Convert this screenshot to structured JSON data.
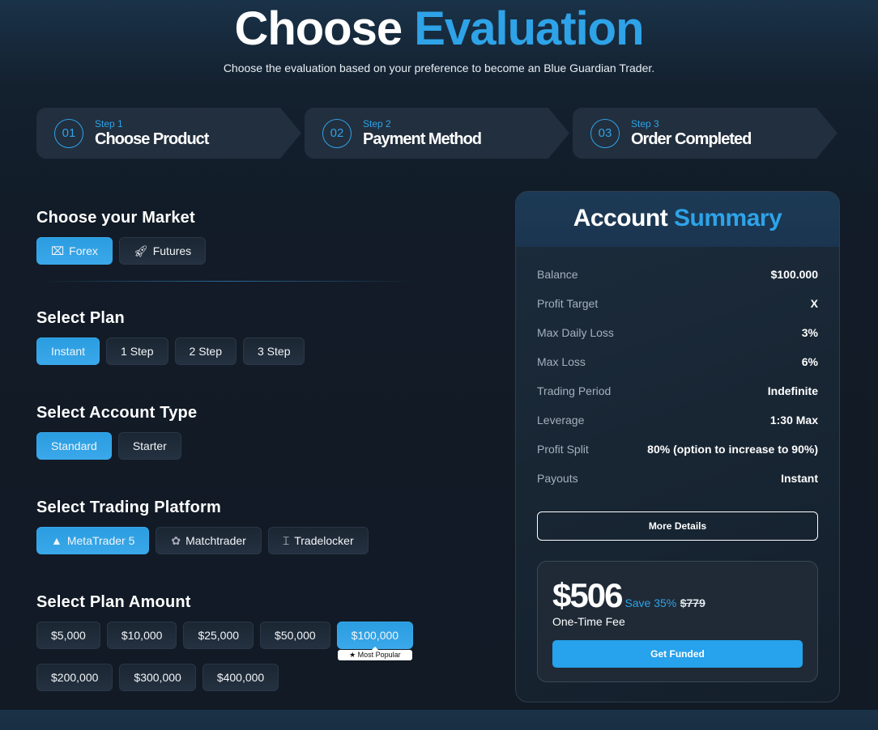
{
  "header": {
    "title_main": "Choose",
    "title_accent": "Evaluation",
    "subtitle": "Choose the evaluation based on your preference to become an Blue Guardian Trader."
  },
  "steps": [
    {
      "num": "01",
      "label": "Step 1",
      "name": "Choose Product"
    },
    {
      "num": "02",
      "label": "Step 2",
      "name": "Payment Method"
    },
    {
      "num": "03",
      "label": "Step 3",
      "name": "Order Completed"
    }
  ],
  "market": {
    "heading": "Choose your Market",
    "options": [
      {
        "label": "Forex",
        "icon": "forex-icon",
        "active": true
      },
      {
        "label": "Futures",
        "icon": "rocket-icon",
        "active": false
      }
    ]
  },
  "plan": {
    "heading": "Select Plan",
    "options": [
      "Instant",
      "1 Step",
      "2 Step",
      "3 Step"
    ],
    "selected": "Instant"
  },
  "account_type": {
    "heading": "Select Account Type",
    "options": [
      "Standard",
      "Starter"
    ],
    "selected": "Standard"
  },
  "platform": {
    "heading": "Select Trading Platform",
    "options": [
      {
        "label": "MetaTrader 5",
        "icon": "metatrader-icon"
      },
      {
        "label": "Matchtrader",
        "icon": "matchtrader-icon"
      },
      {
        "label": "Tradelocker",
        "icon": "tradelocker-icon"
      }
    ],
    "selected": "MetaTrader 5"
  },
  "amount": {
    "heading": "Select Plan Amount",
    "options": [
      "$5,000",
      "$10,000",
      "$25,000",
      "$50,000",
      "$100,000",
      "$200,000",
      "$300,000",
      "$400,000"
    ],
    "selected": "$100,000",
    "badge": "★ Most Popular"
  },
  "summary": {
    "title_main": "Account",
    "title_accent": "Summary",
    "rows": [
      {
        "k": "Balance",
        "v": "$100.000"
      },
      {
        "k": "Profit Target",
        "v": "X"
      },
      {
        "k": "Max Daily Loss",
        "v": "3%"
      },
      {
        "k": "Max Loss",
        "v": "6%"
      },
      {
        "k": "Trading Period",
        "v": "Indefinite"
      },
      {
        "k": "Leverage",
        "v": "1:30 Max"
      },
      {
        "k": "Profit Split",
        "v": "80% (option to increase to 90%)"
      },
      {
        "k": "Payouts",
        "v": "Instant"
      }
    ],
    "more_label": "More Details",
    "price": "$506",
    "save": "Save 35%",
    "old_price": "$779",
    "fee": "One-Time Fee",
    "cta": "Get Funded"
  },
  "colors": {
    "accent": "#2ea3e8",
    "cta": "#27a2ec",
    "background": "#121b27"
  }
}
